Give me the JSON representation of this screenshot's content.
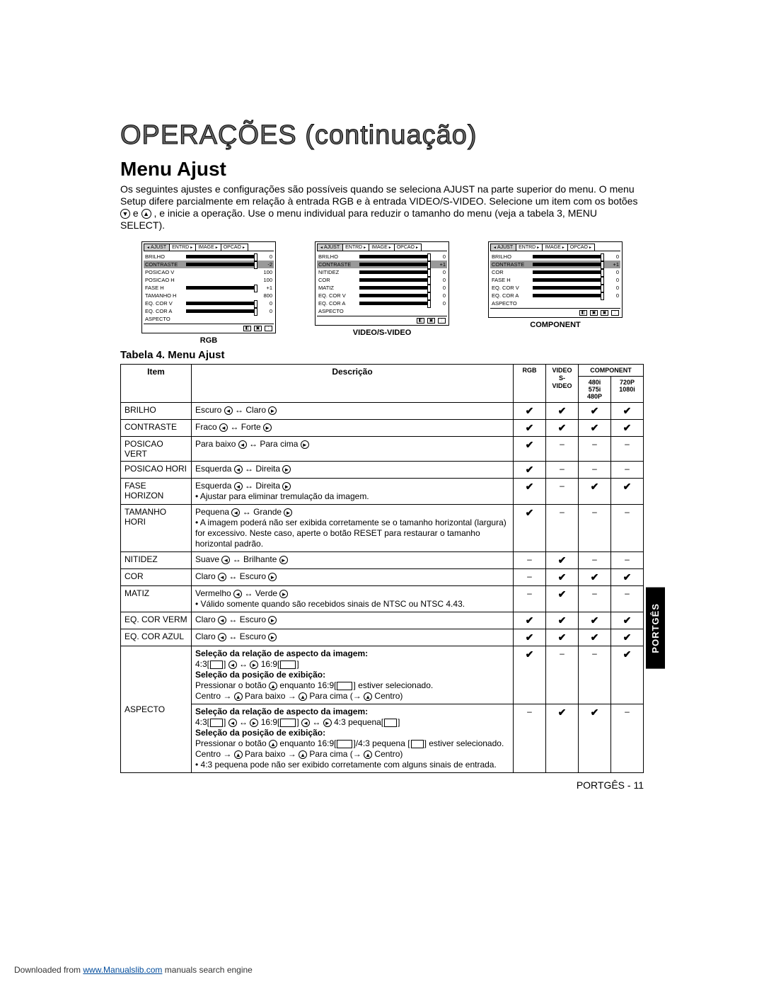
{
  "title": "OPERAÇÕES (continuação)",
  "section": "Menu Ajust",
  "intro": "Os seguintes ajustes e configurações são possíveis quando se seleciona AJUST na parte superior do menu. O menu Setup difere parcialmente em relação à entrada RGB e à entrada VIDEO/S-VIDEO. Selecione um item com os botões ",
  "intro2": " e ",
  "intro3": " , e inicie a operação. Use o menu individual para reduzir o tamanho do menu (veja a tabela 3, MENU SELECT).",
  "mini_tabs": [
    "AJUST",
    "ENTRD",
    "IMAGE",
    "OPCAO"
  ],
  "mini": {
    "rgb": {
      "caption": "RGB",
      "rows": [
        {
          "label": "BRILHO",
          "val": "0",
          "bar": true
        },
        {
          "label": "CONTRASTE",
          "val": "-2",
          "bar": true,
          "hl": true
        },
        {
          "label": "POSICAO V",
          "val": "100",
          "bar": false
        },
        {
          "label": "POSICAO H",
          "val": "100",
          "bar": false
        },
        {
          "label": "FASE H",
          "val": "+1",
          "bar": true
        },
        {
          "label": "TAMANHO H",
          "val": "800",
          "bar": false
        },
        {
          "label": "EQ. COR V",
          "val": "0",
          "bar": true
        },
        {
          "label": "EQ. COR A",
          "val": "0",
          "bar": true
        },
        {
          "label": "ASPECTO",
          "val": "",
          "bar": false
        }
      ]
    },
    "video": {
      "caption": "VIDEO/S-VIDEO",
      "rows": [
        {
          "label": "BRILHO",
          "val": "0",
          "bar": true
        },
        {
          "label": "CONTRASTE",
          "val": "+1",
          "bar": true,
          "hl": true
        },
        {
          "label": "NITIDEZ",
          "val": "0",
          "bar": true
        },
        {
          "label": "COR",
          "val": "0",
          "bar": true
        },
        {
          "label": "MATIZ",
          "val": "0",
          "bar": true
        },
        {
          "label": "EQ. COR V",
          "val": "0",
          "bar": true
        },
        {
          "label": "EQ. COR A",
          "val": "0",
          "bar": true
        },
        {
          "label": "ASPECTO",
          "val": "",
          "bar": false
        }
      ]
    },
    "component": {
      "caption": "COMPONENT",
      "rows": [
        {
          "label": "BRILHO",
          "val": "0",
          "bar": true
        },
        {
          "label": "CONTRASTE",
          "val": "+1",
          "bar": true,
          "hl": true
        },
        {
          "label": "COR",
          "val": "0",
          "bar": true
        },
        {
          "label": "FASE H",
          "val": "0",
          "bar": true
        },
        {
          "label": "EQ. COR V",
          "val": "0",
          "bar": true
        },
        {
          "label": "EQ. COR A",
          "val": "0",
          "bar": true
        },
        {
          "label": "ASPECTO",
          "val": "",
          "bar": false
        }
      ]
    }
  },
  "table_title": "Tabela 4. Menu Ajust",
  "headers": {
    "item": "Item",
    "desc": "Descrição",
    "rgb": "RGB",
    "video": "VIDEO S-VIDEO",
    "component": "COMPONENT",
    "c1": "480i 575i 480P",
    "c2": "720P 1080i"
  },
  "rows": [
    {
      "item": "BRILHO",
      "desc_l": "Escuro",
      "desc_r": "Claro",
      "rgb": "✔",
      "v": "✔",
      "c1": "✔",
      "c2": "✔"
    },
    {
      "item": "CONTRASTE",
      "desc_l": "Fraco",
      "desc_r": "Forte",
      "rgb": "✔",
      "v": "✔",
      "c1": "✔",
      "c2": "✔"
    },
    {
      "item": "POSICAO VERT",
      "desc_l": "Para baixo",
      "desc_r": "Para cima",
      "rgb": "✔",
      "v": "–",
      "c1": "–",
      "c2": "–"
    },
    {
      "item": "POSICAO HORI",
      "desc_l": "Esquerda",
      "desc_r": "Direita",
      "rgb": "✔",
      "v": "–",
      "c1": "–",
      "c2": "–"
    },
    {
      "item": "FASE HORIZON",
      "desc_l": "Esquerda",
      "desc_r": "Direita",
      "note": "• Ajustar para eliminar tremulação da imagem.",
      "rgb": "✔",
      "v": "–",
      "c1": "✔",
      "c2": "✔"
    },
    {
      "item": "TAMANHO HORI",
      "desc_l": "Pequena",
      "desc_r": "Grande",
      "note": "• A imagem poderá não ser exibida corretamente se o tamanho horizontal (largura) for excessivo. Neste caso, aperte o botão RESET para restaurar o tamanho horizontal padrão.",
      "rgb": "✔",
      "v": "–",
      "c1": "–",
      "c2": "–"
    },
    {
      "item": "NITIDEZ",
      "desc_l": "Suave",
      "desc_r": "Brilhante",
      "rgb": "–",
      "v": "✔",
      "c1": "–",
      "c2": "–"
    },
    {
      "item": "COR",
      "desc_l": "Claro",
      "desc_r": "Escuro",
      "rgb": "–",
      "v": "✔",
      "c1": "✔",
      "c2": "✔"
    },
    {
      "item": "MATIZ",
      "desc_l": "Vermelho",
      "desc_r": "Verde",
      "note": "• Válido somente quando são recebidos sinais de NTSC ou NTSC 4.43.",
      "rgb": "–",
      "v": "✔",
      "c1": "–",
      "c2": "–"
    },
    {
      "item": "EQ. COR VERM",
      "desc_l": "Claro",
      "desc_r": "Escuro",
      "rgb": "✔",
      "v": "✔",
      "c1": "✔",
      "c2": "✔"
    },
    {
      "item": "EQ. COR AZUL",
      "desc_l": "Claro",
      "desc_r": "Escuro",
      "rgb": "✔",
      "v": "✔",
      "c1": "✔",
      "c2": "✔"
    }
  ],
  "aspect": {
    "item": "ASPECTO",
    "b1": "Seleção da relação de aspecto da imagem:",
    "l1a": "4:3[",
    "l1b": "] ",
    "l1c": " 16:9[",
    "l1d": "]",
    "b2": "Seleção da posição de exibição:",
    "l2": "Pressionar o botão ",
    "l2b": " enquanto 16:9[",
    "l2c": "] estiver selecionado.",
    "l3": "Centro → ",
    "l3b": " Para baixo → ",
    "l3c": " Para cima (→ ",
    "l3d": " Centro)",
    "row1": {
      "rgb": "✔",
      "v": "–",
      "c1": "–",
      "c2": "✔"
    },
    "b3": "Seleção da relação de aspecto da imagem:",
    "l4a": "4:3[",
    "l4b": "] ",
    "l4c": " 16:9[",
    "l4d": "] ",
    "l4e": " 4:3 pequena[",
    "l4f": "]",
    "b4": "Seleção da posição de exibição:",
    "l5": "Pressionar o botão ",
    "l5b": " enquanto 16:9[",
    "l5c": "]/4:3 pequena [",
    "l5d": "] estiver selecionado.",
    "l6": "Centro → ",
    "l6b": " Para baixo → ",
    "l6c": " Para cima (→ ",
    "l6d": " Centro)",
    "l7": "• 4:3 pequena pode não ser exibido corretamente com alguns sinais de entrada.",
    "row2": {
      "rgb": "–",
      "v": "✔",
      "c1": "✔",
      "c2": "–"
    }
  },
  "side_tab": "PORTGÊS",
  "page_foot": "PORTGÊS - 11",
  "dl_pre": "Downloaded from ",
  "dl_link": "www.Manualslib.com",
  "dl_post": " manuals search engine"
}
